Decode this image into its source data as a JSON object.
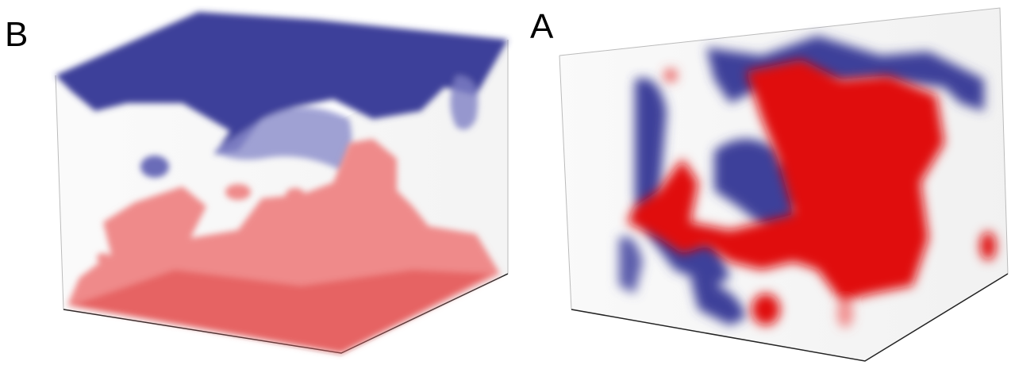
{
  "panels": [
    {
      "label": "B"
    },
    {
      "label": "A"
    }
  ]
}
